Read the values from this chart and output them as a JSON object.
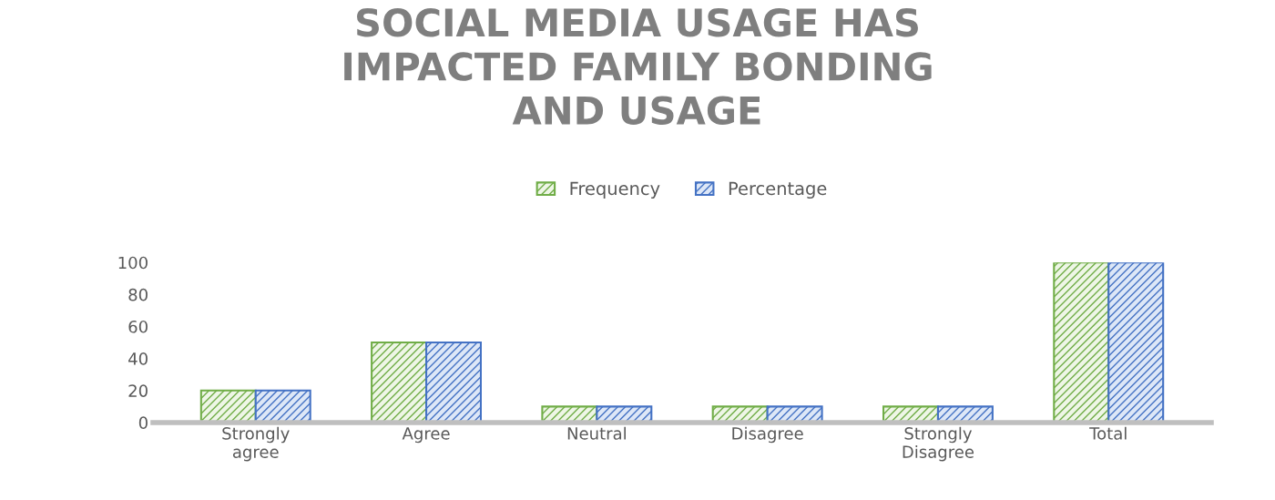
{
  "chart_data": {
    "type": "bar",
    "title": "SOCIAL MEDIA USAGE HAS\nIMPACTED FAMILY BONDING\nAND USAGE",
    "categories": [
      "Strongly\nagree",
      "Agree",
      "Neutral",
      "Disagree",
      "Strongly\nDisagree",
      "Total"
    ],
    "series": [
      {
        "name": "Frequency",
        "color": "#70ad47",
        "values": [
          20,
          50,
          10,
          10,
          10,
          100
        ]
      },
      {
        "name": "Percentage",
        "color": "#4472c4",
        "values": [
          20,
          50,
          10,
          10,
          10,
          100
        ]
      }
    ],
    "ylim": [
      0,
      100
    ],
    "yticks": [
      0,
      20,
      40,
      60,
      80,
      100
    ],
    "grid": false,
    "legend": "top"
  }
}
